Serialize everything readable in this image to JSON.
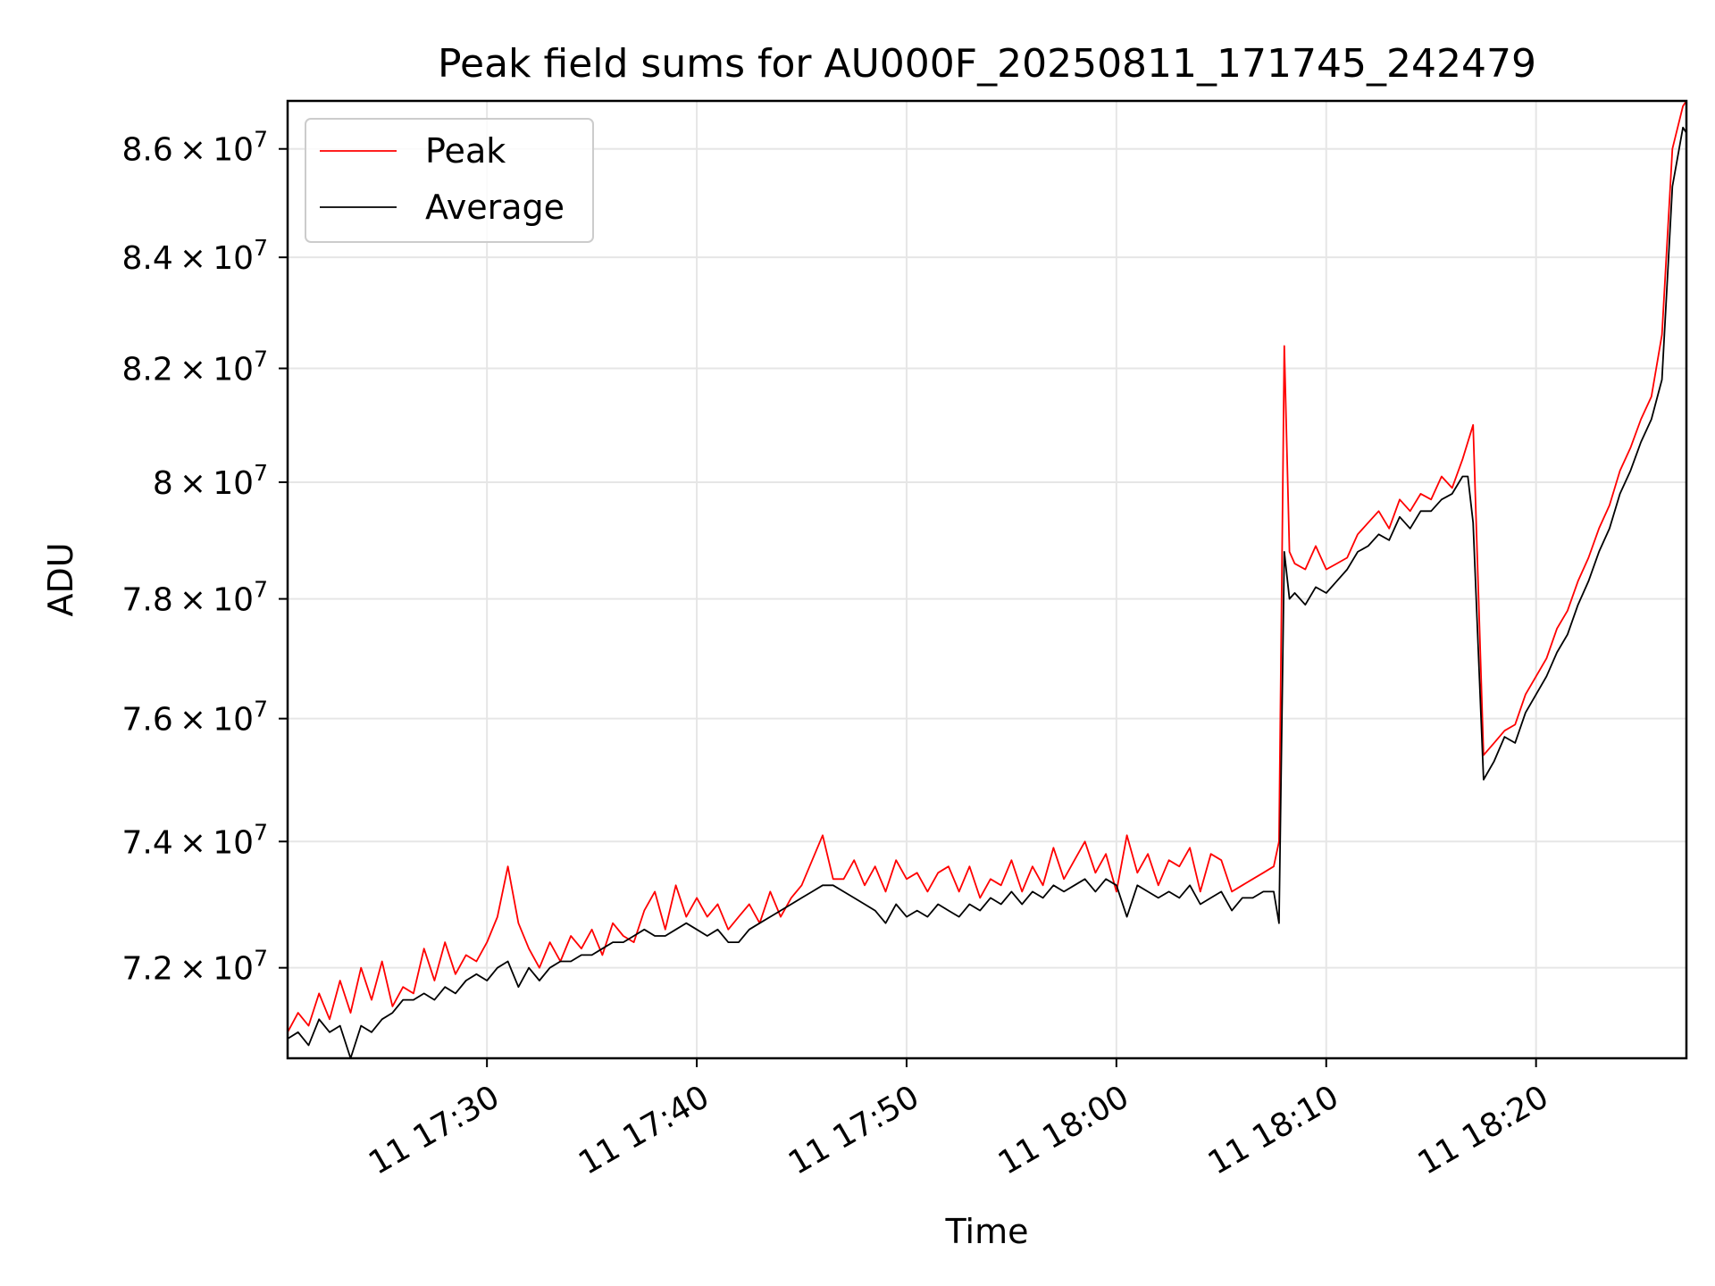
{
  "chart_data": {
    "type": "line",
    "title": "Peak field sums for AU000F_20250811_171745_242479",
    "xlabel": "Time",
    "ylabel": "ADU",
    "yscale": "log",
    "grid": true,
    "legend_position": "top-left",
    "xlim": [
      "2025-08-11 17:20:30",
      "2025-08-11 18:27:10"
    ],
    "ylim": [
      70600000,
      86900000
    ],
    "x_ticks": [
      {
        "at": "2025-08-11 17:30:00",
        "label": "11 17:30"
      },
      {
        "at": "2025-08-11 17:40:00",
        "label": "11 17:40"
      },
      {
        "at": "2025-08-11 17:50:00",
        "label": "11 17:50"
      },
      {
        "at": "2025-08-11 18:00:00",
        "label": "11 18:00"
      },
      {
        "at": "2025-08-11 18:10:00",
        "label": "11 18:10"
      },
      {
        "at": "2025-08-11 18:20:00",
        "label": "11 18:20"
      }
    ],
    "y_ticks": [
      {
        "value": 72000000,
        "mantissa": "7.2",
        "exponent": "7"
      },
      {
        "value": 74000000,
        "mantissa": "7.4",
        "exponent": "7"
      },
      {
        "value": 76000000,
        "mantissa": "7.6",
        "exponent": "7"
      },
      {
        "value": 78000000,
        "mantissa": "7.8",
        "exponent": "7"
      },
      {
        "value": 80000000,
        "mantissa": "8",
        "exponent": "7"
      },
      {
        "value": 82000000,
        "mantissa": "8.2",
        "exponent": "7"
      },
      {
        "value": 84000000,
        "mantissa": "8.4",
        "exponent": "7"
      },
      {
        "value": 86000000,
        "mantissa": "8.6",
        "exponent": "7"
      }
    ],
    "times": [
      "2025-08-11 17:20:30",
      "2025-08-11 17:21:00",
      "2025-08-11 17:21:30",
      "2025-08-11 17:22:00",
      "2025-08-11 17:22:30",
      "2025-08-11 17:23:00",
      "2025-08-11 17:23:30",
      "2025-08-11 17:24:00",
      "2025-08-11 17:24:30",
      "2025-08-11 17:25:00",
      "2025-08-11 17:25:30",
      "2025-08-11 17:26:00",
      "2025-08-11 17:26:30",
      "2025-08-11 17:27:00",
      "2025-08-11 17:27:30",
      "2025-08-11 17:28:00",
      "2025-08-11 17:28:30",
      "2025-08-11 17:29:00",
      "2025-08-11 17:29:30",
      "2025-08-11 17:30:00",
      "2025-08-11 17:30:30",
      "2025-08-11 17:31:00",
      "2025-08-11 17:31:30",
      "2025-08-11 17:32:00",
      "2025-08-11 17:32:30",
      "2025-08-11 17:33:00",
      "2025-08-11 17:33:30",
      "2025-08-11 17:34:00",
      "2025-08-11 17:34:30",
      "2025-08-11 17:35:00",
      "2025-08-11 17:35:30",
      "2025-08-11 17:36:00",
      "2025-08-11 17:36:30",
      "2025-08-11 17:37:00",
      "2025-08-11 17:37:30",
      "2025-08-11 17:38:00",
      "2025-08-11 17:38:30",
      "2025-08-11 17:39:00",
      "2025-08-11 17:39:30",
      "2025-08-11 17:40:00",
      "2025-08-11 17:40:30",
      "2025-08-11 17:41:00",
      "2025-08-11 17:41:30",
      "2025-08-11 17:42:00",
      "2025-08-11 17:42:30",
      "2025-08-11 17:43:00",
      "2025-08-11 17:43:30",
      "2025-08-11 17:44:00",
      "2025-08-11 17:44:30",
      "2025-08-11 17:45:00",
      "2025-08-11 17:45:30",
      "2025-08-11 17:46:00",
      "2025-08-11 17:46:30",
      "2025-08-11 17:47:00",
      "2025-08-11 17:47:30",
      "2025-08-11 17:48:00",
      "2025-08-11 17:48:30",
      "2025-08-11 17:49:00",
      "2025-08-11 17:49:30",
      "2025-08-11 17:50:00",
      "2025-08-11 17:50:30",
      "2025-08-11 17:51:00",
      "2025-08-11 17:51:30",
      "2025-08-11 17:52:00",
      "2025-08-11 17:52:30",
      "2025-08-11 17:53:00",
      "2025-08-11 17:53:30",
      "2025-08-11 17:54:00",
      "2025-08-11 17:54:30",
      "2025-08-11 17:55:00",
      "2025-08-11 17:55:30",
      "2025-08-11 17:56:00",
      "2025-08-11 17:56:30",
      "2025-08-11 17:57:00",
      "2025-08-11 17:57:30",
      "2025-08-11 17:58:00",
      "2025-08-11 17:58:30",
      "2025-08-11 17:59:00",
      "2025-08-11 17:59:30",
      "2025-08-11 18:00:00",
      "2025-08-11 18:00:30",
      "2025-08-11 18:01:00",
      "2025-08-11 18:01:30",
      "2025-08-11 18:02:00",
      "2025-08-11 18:02:30",
      "2025-08-11 18:03:00",
      "2025-08-11 18:03:30",
      "2025-08-11 18:04:00",
      "2025-08-11 18:04:30",
      "2025-08-11 18:05:00",
      "2025-08-11 18:05:30",
      "2025-08-11 18:06:00",
      "2025-08-11 18:06:30",
      "2025-08-11 18:07:00",
      "2025-08-11 18:07:30",
      "2025-08-11 18:07:45",
      "2025-08-11 18:08:00",
      "2025-08-11 18:08:15",
      "2025-08-11 18:08:30",
      "2025-08-11 18:09:00",
      "2025-08-11 18:09:30",
      "2025-08-11 18:10:00",
      "2025-08-11 18:10:30",
      "2025-08-11 18:11:00",
      "2025-08-11 18:11:30",
      "2025-08-11 18:12:00",
      "2025-08-11 18:12:30",
      "2025-08-11 18:13:00",
      "2025-08-11 18:13:30",
      "2025-08-11 18:14:00",
      "2025-08-11 18:14:30",
      "2025-08-11 18:15:00",
      "2025-08-11 18:15:30",
      "2025-08-11 18:16:00",
      "2025-08-11 18:16:30",
      "2025-08-11 18:16:45",
      "2025-08-11 18:17:00",
      "2025-08-11 18:17:30",
      "2025-08-11 18:18:00",
      "2025-08-11 18:18:30",
      "2025-08-11 18:19:00",
      "2025-08-11 18:19:30",
      "2025-08-11 18:20:00",
      "2025-08-11 18:20:30",
      "2025-08-11 18:21:00",
      "2025-08-11 18:21:30",
      "2025-08-11 18:22:00",
      "2025-08-11 18:22:30",
      "2025-08-11 18:23:00",
      "2025-08-11 18:23:30",
      "2025-08-11 18:24:00",
      "2025-08-11 18:24:30",
      "2025-08-11 18:25:00",
      "2025-08-11 18:25:30",
      "2025-08-11 18:26:00",
      "2025-08-11 18:26:30",
      "2025-08-11 18:27:00",
      "2025-08-11 18:27:10"
    ],
    "series": [
      {
        "name": "Peak",
        "color": "#ff0000",
        "values": [
          71000000,
          71300000,
          71100000,
          71600000,
          71200000,
          71800000,
          71300000,
          72000000,
          71500000,
          72100000,
          71400000,
          71700000,
          71600000,
          72300000,
          71800000,
          72400000,
          71900000,
          72200000,
          72100000,
          72400000,
          72800000,
          73600000,
          72700000,
          72300000,
          72000000,
          72400000,
          72100000,
          72500000,
          72300000,
          72600000,
          72200000,
          72700000,
          72500000,
          72400000,
          72900000,
          73200000,
          72600000,
          73300000,
          72800000,
          73100000,
          72800000,
          73000000,
          72600000,
          72800000,
          73000000,
          72700000,
          73200000,
          72800000,
          73100000,
          73300000,
          73700000,
          74100000,
          73400000,
          73400000,
          73700000,
          73300000,
          73600000,
          73200000,
          73700000,
          73400000,
          73500000,
          73200000,
          73500000,
          73600000,
          73200000,
          73600000,
          73100000,
          73400000,
          73300000,
          73700000,
          73200000,
          73600000,
          73300000,
          73900000,
          73400000,
          73700000,
          74000000,
          73500000,
          73800000,
          73200000,
          74100000,
          73500000,
          73800000,
          73300000,
          73700000,
          73600000,
          73900000,
          73200000,
          73800000,
          73700000,
          73200000,
          73300000,
          73400000,
          73500000,
          73600000,
          74000000,
          82400000,
          78800000,
          78600000,
          78500000,
          78900000,
          78500000,
          78600000,
          78700000,
          79100000,
          79300000,
          79500000,
          79200000,
          79700000,
          79500000,
          79800000,
          79700000,
          80100000,
          79900000,
          80400000,
          80700000,
          81000000,
          75400000,
          75600000,
          75800000,
          75900000,
          76400000,
          76700000,
          77000000,
          77500000,
          77800000,
          78300000,
          78700000,
          79200000,
          79600000,
          80200000,
          80600000,
          81100000,
          81500000,
          82600000,
          86000000,
          86800000,
          86900000
        ]
      },
      {
        "name": "Average",
        "color": "#000000",
        "values": [
          70900000,
          71000000,
          70800000,
          71200000,
          71000000,
          71100000,
          70600000,
          71100000,
          71000000,
          71200000,
          71300000,
          71500000,
          71500000,
          71600000,
          71500000,
          71700000,
          71600000,
          71800000,
          71900000,
          71800000,
          72000000,
          72100000,
          71700000,
          72000000,
          71800000,
          72000000,
          72100000,
          72100000,
          72200000,
          72200000,
          72300000,
          72400000,
          72400000,
          72500000,
          72600000,
          72500000,
          72500000,
          72600000,
          72700000,
          72600000,
          72500000,
          72600000,
          72400000,
          72400000,
          72600000,
          72700000,
          72800000,
          72900000,
          73000000,
          73100000,
          73200000,
          73300000,
          73300000,
          73200000,
          73100000,
          73000000,
          72900000,
          72700000,
          73000000,
          72800000,
          72900000,
          72800000,
          73000000,
          72900000,
          72800000,
          73000000,
          72900000,
          73100000,
          73000000,
          73200000,
          73000000,
          73200000,
          73100000,
          73300000,
          73200000,
          73300000,
          73400000,
          73200000,
          73400000,
          73300000,
          72800000,
          73300000,
          73200000,
          73100000,
          73200000,
          73100000,
          73300000,
          73000000,
          73100000,
          73200000,
          72900000,
          73100000,
          73100000,
          73200000,
          73200000,
          72700000,
          78800000,
          78000000,
          78100000,
          77900000,
          78200000,
          78100000,
          78300000,
          78500000,
          78800000,
          78900000,
          79100000,
          79000000,
          79400000,
          79200000,
          79500000,
          79500000,
          79700000,
          79800000,
          80100000,
          80100000,
          79300000,
          75000000,
          75300000,
          75700000,
          75600000,
          76100000,
          76400000,
          76700000,
          77100000,
          77400000,
          77900000,
          78300000,
          78800000,
          79200000,
          79800000,
          80200000,
          80700000,
          81100000,
          81800000,
          85300000,
          86400000,
          86300000
        ]
      }
    ]
  }
}
